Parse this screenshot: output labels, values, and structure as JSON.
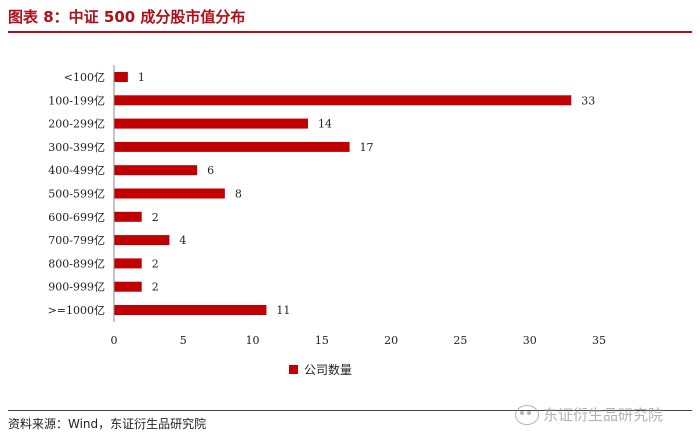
{
  "header": {
    "title": "图表 8：中证 500 成分股市值分布"
  },
  "legend": {
    "label": "公司数量",
    "color": "#c00000"
  },
  "footer": {
    "source": "资料来源：Wind，东证衍生品研究院"
  },
  "watermark": {
    "text": "东证衍生品研究院",
    "icon": "wechat-icon"
  },
  "chart_data": {
    "type": "bar",
    "orientation": "horizontal",
    "categories": [
      "<100亿",
      "100-199亿",
      "200-299亿",
      "300-399亿",
      "400-499亿",
      "500-599亿",
      "600-699亿",
      "700-799亿",
      "800-899亿",
      "900-999亿",
      ">=1000亿"
    ],
    "series": [
      {
        "name": "公司数量",
        "values": [
          1,
          33,
          14,
          17,
          6,
          8,
          2,
          4,
          2,
          2,
          11
        ],
        "color": "#c00000"
      }
    ],
    "xlim": [
      0,
      35
    ],
    "xticks": [
      0,
      5,
      10,
      15,
      20,
      25,
      30,
      35
    ],
    "grid": false,
    "legend_position": "bottom"
  }
}
